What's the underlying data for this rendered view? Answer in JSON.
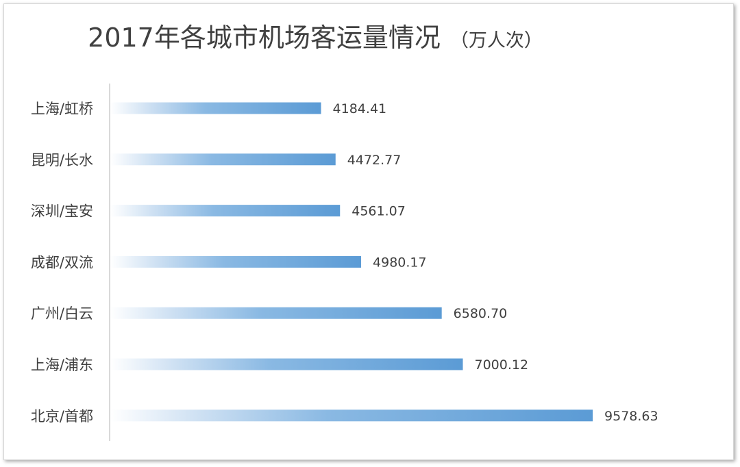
{
  "chart_data": {
    "type": "bar",
    "orientation": "horizontal",
    "title": "2017年各城市机场客运量情况",
    "unit": "（万人次）",
    "categories": [
      "上海/虹桥",
      "昆明/长水",
      "深圳/宝安",
      "成都/双流",
      "广州/白云",
      "上海/浦东",
      "北京/首都"
    ],
    "values": [
      4184.41,
      4472.77,
      4561.07,
      4980.17,
      6580.7,
      7000.12,
      9578.63
    ],
    "value_labels": [
      "4184.41",
      "4472.77",
      "4561.07",
      "4980.17",
      "6580.70",
      "7000.12",
      "9578.63"
    ],
    "xlim": [
      0,
      10000
    ],
    "grid": false,
    "legend": "none",
    "bar_color": "#5b9bd5",
    "bar_fade_color": "#ffffff"
  }
}
